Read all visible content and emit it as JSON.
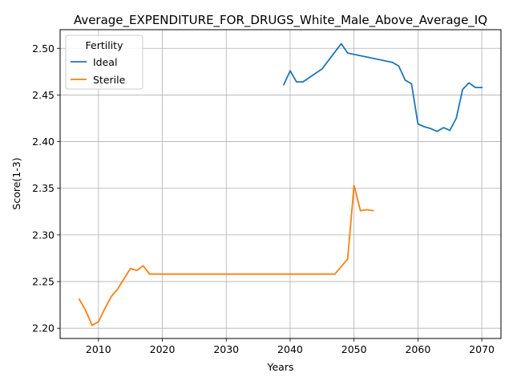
{
  "chart_data": {
    "type": "line",
    "title": "Average_EXPENDITURE_FOR_DRUGS_White_Male_Above_Average_IQ",
    "xlabel": "Years",
    "ylabel": "Score(1-3)",
    "xlim": [
      2004,
      2073
    ],
    "ylim": [
      2.189,
      2.52
    ],
    "xticks": [
      2010,
      2020,
      2030,
      2040,
      2050,
      2060,
      2070
    ],
    "yticks": [
      2.2,
      2.25,
      2.3,
      2.35,
      2.4,
      2.45,
      2.5
    ],
    "grid": true,
    "legend": {
      "title": "Fertility",
      "placement": "top-left"
    },
    "series": [
      {
        "name": "Ideal",
        "color": "#1f77b4",
        "x": [
          2039,
          2040,
          2041,
          2042,
          2045,
          2048,
          2049,
          2056,
          2057,
          2058,
          2059,
          2060,
          2061,
          2062,
          2063,
          2064,
          2065,
          2066,
          2067,
          2068,
          2069,
          2070
        ],
        "y": [
          2.461,
          2.476,
          2.464,
          2.464,
          2.478,
          2.505,
          2.495,
          2.485,
          2.481,
          2.466,
          2.462,
          2.419,
          2.416,
          2.414,
          2.411,
          2.415,
          2.412,
          2.425,
          2.456,
          2.463,
          2.458,
          2.458
        ]
      },
      {
        "name": "Sterile",
        "color": "#ff7f0e",
        "x": [
          2007,
          2008,
          2009,
          2010,
          2011,
          2012,
          2013,
          2014,
          2015,
          2016,
          2017,
          2018,
          2020,
          2030,
          2040,
          2047,
          2049,
          2050,
          2051,
          2052,
          2053
        ],
        "y": [
          2.231,
          2.219,
          2.203,
          2.207,
          2.221,
          2.234,
          2.242,
          2.253,
          2.264,
          2.262,
          2.267,
          2.258,
          2.258,
          2.258,
          2.258,
          2.258,
          2.274,
          2.353,
          2.326,
          2.327,
          2.326
        ]
      }
    ]
  }
}
